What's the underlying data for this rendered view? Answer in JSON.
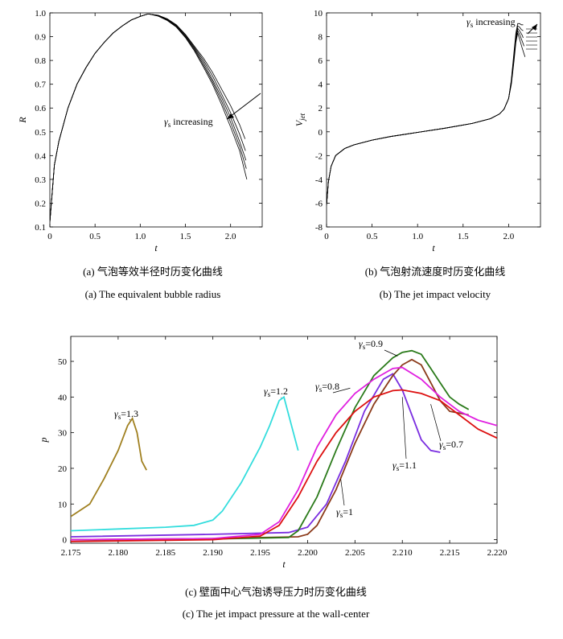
{
  "chart_data": [
    {
      "id": "a",
      "type": "line",
      "title": "",
      "caption_cn": "(a) 气泡等效半径时历变化曲线",
      "caption_en": "(a) The equivalent bubble radius",
      "xlabel": "t",
      "ylabel": "R",
      "xlim": [
        0,
        2.35
      ],
      "ylim": [
        0.1,
        1.0
      ],
      "xticks": [
        0,
        0.5,
        1,
        1.5,
        2
      ],
      "xtick_labels": [
        "0",
        "0.5",
        "1.0",
        "1.5",
        "2.0"
      ],
      "yticks": [
        0.1,
        0.2,
        0.3,
        0.4,
        0.5,
        0.6,
        0.7,
        0.8,
        0.9,
        1.0
      ],
      "ytick_labels": [
        "0.1",
        "0.2",
        "0.3",
        "0.4",
        "0.5",
        "0.6",
        "0.7",
        "0.8",
        "0.9",
        "1.0"
      ],
      "annotation": {
        "symbol": "γ",
        "sub": "s",
        "text": "increasing"
      },
      "line_color": "#000000",
      "series": [
        {
          "x": [
            0.0,
            0.05,
            0.1,
            0.2,
            0.3,
            0.4,
            0.5,
            0.6,
            0.7,
            0.8,
            0.9,
            1.0,
            1.08,
            1.1,
            1.2,
            1.3,
            1.4,
            1.5,
            1.6,
            1.7,
            1.8,
            1.9,
            2.0,
            2.1,
            2.16
          ],
          "y": [
            0.12,
            0.36,
            0.46,
            0.6,
            0.7,
            0.77,
            0.83,
            0.875,
            0.915,
            0.945,
            0.97,
            0.985,
            0.995,
            0.995,
            0.99,
            0.975,
            0.95,
            0.91,
            0.86,
            0.81,
            0.75,
            0.68,
            0.61,
            0.53,
            0.47
          ]
        },
        {
          "x": [
            0.0,
            0.05,
            0.1,
            0.2,
            0.3,
            0.4,
            0.5,
            0.6,
            0.7,
            0.8,
            0.9,
            1.0,
            1.08,
            1.1,
            1.2,
            1.3,
            1.4,
            1.5,
            1.6,
            1.7,
            1.8,
            1.9,
            2.0,
            2.1,
            2.165
          ],
          "y": [
            0.12,
            0.36,
            0.46,
            0.6,
            0.7,
            0.77,
            0.83,
            0.875,
            0.915,
            0.945,
            0.97,
            0.985,
            0.995,
            0.995,
            0.99,
            0.974,
            0.948,
            0.907,
            0.855,
            0.8,
            0.735,
            0.66,
            0.58,
            0.49,
            0.42
          ]
        },
        {
          "x": [
            0.0,
            0.05,
            0.1,
            0.2,
            0.3,
            0.4,
            0.5,
            0.6,
            0.7,
            0.8,
            0.9,
            1.0,
            1.08,
            1.1,
            1.2,
            1.3,
            1.4,
            1.5,
            1.6,
            1.7,
            1.8,
            1.9,
            2.0,
            2.1,
            2.17
          ],
          "y": [
            0.12,
            0.36,
            0.46,
            0.6,
            0.7,
            0.77,
            0.83,
            0.875,
            0.915,
            0.945,
            0.97,
            0.985,
            0.995,
            0.995,
            0.988,
            0.972,
            0.945,
            0.903,
            0.85,
            0.79,
            0.72,
            0.645,
            0.56,
            0.46,
            0.38
          ]
        },
        {
          "x": [
            0.0,
            0.05,
            0.1,
            0.2,
            0.3,
            0.4,
            0.5,
            0.6,
            0.7,
            0.8,
            0.9,
            1.0,
            1.08,
            1.1,
            1.2,
            1.3,
            1.4,
            1.5,
            1.6,
            1.7,
            1.8,
            1.9,
            2.0,
            2.1,
            2.175
          ],
          "y": [
            0.12,
            0.36,
            0.46,
            0.6,
            0.7,
            0.77,
            0.83,
            0.875,
            0.915,
            0.945,
            0.97,
            0.985,
            0.995,
            0.995,
            0.987,
            0.97,
            0.942,
            0.9,
            0.845,
            0.78,
            0.71,
            0.63,
            0.54,
            0.44,
            0.345
          ]
        },
        {
          "x": [
            0.0,
            0.05,
            0.1,
            0.2,
            0.3,
            0.4,
            0.5,
            0.6,
            0.7,
            0.8,
            0.9,
            1.0,
            1.08,
            1.1,
            1.2,
            1.3,
            1.4,
            1.5,
            1.6,
            1.7,
            1.8,
            1.9,
            2.0,
            2.1,
            2.18
          ],
          "y": [
            0.12,
            0.36,
            0.46,
            0.6,
            0.7,
            0.77,
            0.83,
            0.875,
            0.915,
            0.945,
            0.97,
            0.985,
            0.995,
            0.995,
            0.986,
            0.968,
            0.94,
            0.896,
            0.84,
            0.772,
            0.7,
            0.615,
            0.52,
            0.42,
            0.3
          ]
        }
      ]
    },
    {
      "id": "b",
      "type": "line",
      "title": "",
      "caption_cn": "(b) 气泡射流速度时历变化曲线",
      "caption_en": "(b) The jet impact velocity",
      "xlabel": "t",
      "ylabel": "V",
      "ylabel_sub": "jet",
      "xlim": [
        0,
        2.35
      ],
      "ylim": [
        -8,
        10
      ],
      "xticks": [
        0,
        0.5,
        1,
        1.5,
        2
      ],
      "xtick_labels": [
        "0",
        "0.5",
        "1.0",
        "1.5",
        "2.0"
      ],
      "yticks": [
        -8,
        -6,
        -4,
        -2,
        0,
        2,
        4,
        6,
        8,
        10
      ],
      "ytick_labels": [
        "-8",
        "-6",
        "-4",
        "-2",
        "0",
        "2",
        "4",
        "6",
        "8",
        "10"
      ],
      "annotation": {
        "symbol": "γ",
        "sub": "s",
        "text": "increasing"
      },
      "line_color": "#000000",
      "series": [
        {
          "x": [
            0.0,
            0.02,
            0.05,
            0.1,
            0.2,
            0.3,
            0.5,
            0.7,
            1.0,
            1.3,
            1.6,
            1.8,
            1.9,
            1.95,
            2.0,
            2.03,
            2.06,
            2.08,
            2.1,
            2.12,
            2.15,
            2.18
          ],
          "y": [
            -6.2,
            -4.2,
            -2.9,
            -2.0,
            -1.4,
            -1.1,
            -0.7,
            -0.4,
            -0.05,
            0.3,
            0.7,
            1.1,
            1.5,
            1.9,
            2.8,
            4.0,
            6.0,
            7.5,
            8.3,
            7.8,
            7.0,
            6.3
          ]
        },
        {
          "x": [
            0.0,
            0.02,
            0.05,
            0.1,
            0.2,
            0.3,
            0.5,
            0.7,
            1.0,
            1.3,
            1.6,
            1.8,
            1.9,
            1.95,
            2.0,
            2.03,
            2.06,
            2.08,
            2.1,
            2.12,
            2.15,
            2.17
          ],
          "y": [
            -6.2,
            -4.2,
            -2.9,
            -2.0,
            -1.4,
            -1.1,
            -0.7,
            -0.4,
            -0.05,
            0.3,
            0.7,
            1.1,
            1.5,
            1.9,
            2.8,
            4.1,
            6.2,
            7.7,
            8.5,
            8.2,
            7.6,
            7.2
          ]
        },
        {
          "x": [
            0.0,
            0.02,
            0.05,
            0.1,
            0.2,
            0.3,
            0.5,
            0.7,
            1.0,
            1.3,
            1.6,
            1.8,
            1.9,
            1.95,
            2.0,
            2.03,
            2.06,
            2.08,
            2.1,
            2.12,
            2.15,
            2.16
          ],
          "y": [
            -6.2,
            -4.2,
            -2.9,
            -2.0,
            -1.4,
            -1.1,
            -0.7,
            -0.4,
            -0.05,
            0.3,
            0.7,
            1.1,
            1.5,
            1.9,
            2.8,
            4.2,
            6.4,
            7.9,
            8.7,
            8.5,
            8.1,
            7.9
          ]
        },
        {
          "x": [
            0.0,
            0.02,
            0.05,
            0.1,
            0.2,
            0.3,
            0.5,
            0.7,
            1.0,
            1.3,
            1.6,
            1.8,
            1.9,
            1.95,
            2.0,
            2.03,
            2.06,
            2.08,
            2.1,
            2.12,
            2.14,
            2.16
          ],
          "y": [
            -6.2,
            -4.2,
            -2.9,
            -2.0,
            -1.4,
            -1.1,
            -0.7,
            -0.4,
            -0.05,
            0.3,
            0.7,
            1.1,
            1.5,
            1.9,
            2.8,
            4.3,
            6.6,
            8.1,
            8.9,
            8.8,
            8.6,
            8.5
          ]
        },
        {
          "x": [
            0.0,
            0.02,
            0.05,
            0.1,
            0.2,
            0.3,
            0.5,
            0.7,
            1.0,
            1.3,
            1.6,
            1.8,
            1.9,
            1.95,
            2.0,
            2.03,
            2.06,
            2.08,
            2.1,
            2.12,
            2.14,
            2.16
          ],
          "y": [
            -6.2,
            -4.2,
            -2.9,
            -2.0,
            -1.4,
            -1.1,
            -0.7,
            -0.4,
            -0.05,
            0.3,
            0.7,
            1.1,
            1.5,
            1.9,
            2.8,
            4.4,
            6.8,
            8.3,
            9.1,
            9.1,
            9.0,
            9.0
          ]
        }
      ]
    },
    {
      "id": "c",
      "type": "line",
      "title": "",
      "caption_cn": "(c) 壁面中心气泡诱导压力时历变化曲线",
      "caption_en": "(c) The jet impact pressure at the wall-center",
      "xlabel": "t",
      "ylabel": "p",
      "xlim": [
        2.175,
        2.22
      ],
      "ylim": [
        -1,
        57
      ],
      "xticks": [
        2.175,
        2.18,
        2.185,
        2.19,
        2.195,
        2.2,
        2.205,
        2.21,
        2.215,
        2.22
      ],
      "xtick_labels": [
        "2.175",
        "2.180",
        "2.185",
        "2.190",
        "2.195",
        "2.200",
        "2.205",
        "2.210",
        "2.215",
        "2.220"
      ],
      "yticks": [
        0,
        10,
        20,
        30,
        40,
        50
      ],
      "ytick_labels": [
        "0",
        "10",
        "20",
        "30",
        "40",
        "50"
      ],
      "series": [
        {
          "name": "γs=1.3",
          "label_symbol": "γ",
          "label_sub": "s",
          "label_val": "=1.3",
          "color": "#a08020",
          "x": [
            2.175,
            2.177,
            2.1785,
            2.18,
            2.181,
            2.1815,
            2.182,
            2.1825,
            2.183
          ],
          "y": [
            6.5,
            10,
            17,
            25,
            32,
            34,
            30,
            22,
            19.5
          ]
        },
        {
          "name": "γs=1.2",
          "label_symbol": "γ",
          "label_sub": "s",
          "label_val": "=1.2",
          "color": "#33dddd",
          "x": [
            2.175,
            2.18,
            2.185,
            2.188,
            2.19,
            2.191,
            2.193,
            2.195,
            2.196,
            2.197,
            2.1975,
            2.198,
            2.199
          ],
          "y": [
            2.5,
            3.0,
            3.5,
            4.0,
            5.5,
            8,
            16,
            26,
            32,
            39,
            40,
            35,
            25
          ]
        },
        {
          "name": "γs=1.1",
          "label_symbol": "γ",
          "label_sub": "s",
          "label_val": "=1.1",
          "color": "#7a2ee0",
          "x": [
            2.175,
            2.19,
            2.198,
            2.2,
            2.202,
            2.204,
            2.206,
            2.208,
            2.209,
            2.21,
            2.211,
            2.212,
            2.213,
            2.214
          ],
          "y": [
            0.8,
            1.5,
            2.0,
            3.5,
            10,
            22,
            36,
            45,
            46.5,
            42,
            35,
            28,
            25,
            24.5
          ]
        },
        {
          "name": "γs=1",
          "label_symbol": "γ",
          "label_sub": "s",
          "label_val": "=1",
          "color": "#8b3a1a",
          "x": [
            2.175,
            2.19,
            2.199,
            2.2,
            2.201,
            2.203,
            2.205,
            2.207,
            2.209,
            2.21,
            2.211,
            2.212,
            2.213,
            2.214,
            2.215,
            2.217
          ],
          "y": [
            0.0,
            0.3,
            0.8,
            1.5,
            4,
            14,
            27,
            38,
            46,
            49,
            50.5,
            49,
            44,
            39,
            36,
            35
          ]
        },
        {
          "name": "γs=0.9",
          "label_symbol": "γ",
          "label_sub": "s",
          "label_val": "=0.9",
          "color": "#2a7a1a",
          "x": [
            2.175,
            2.19,
            2.198,
            2.199,
            2.201,
            2.203,
            2.205,
            2.207,
            2.209,
            2.21,
            2.211,
            2.212,
            2.213,
            2.214,
            2.215,
            2.216,
            2.217
          ],
          "y": [
            0.0,
            0.2,
            0.6,
            2.5,
            12,
            25,
            37,
            46,
            51,
            52.5,
            53,
            52,
            48,
            44,
            40,
            38,
            36.5
          ]
        },
        {
          "name": "γs=0.8",
          "label_symbol": "γ",
          "label_sub": "s",
          "label_val": "=0.8",
          "color": "#e020e0",
          "x": [
            2.175,
            2.19,
            2.195,
            2.197,
            2.199,
            2.201,
            2.203,
            2.205,
            2.207,
            2.209,
            2.21,
            2.212,
            2.214,
            2.216,
            2.218,
            2.22
          ],
          "y": [
            0.0,
            0.3,
            1.5,
            5,
            14,
            26,
            35,
            41,
            45,
            48,
            48.3,
            45,
            40,
            36,
            33.5,
            32
          ]
        },
        {
          "name": "γs=0.7",
          "label_symbol": "γ",
          "label_sub": "s",
          "label_val": "=0.7",
          "color": "#dd1111",
          "x": [
            2.175,
            2.19,
            2.195,
            2.197,
            2.199,
            2.201,
            2.203,
            2.205,
            2.207,
            2.209,
            2.21,
            2.212,
            2.214,
            2.216,
            2.218,
            2.22
          ],
          "y": [
            -0.5,
            0.0,
            1.0,
            4,
            12,
            22,
            30,
            36,
            40,
            41.8,
            42,
            41,
            39,
            35,
            31,
            28.5
          ]
        }
      ]
    }
  ]
}
